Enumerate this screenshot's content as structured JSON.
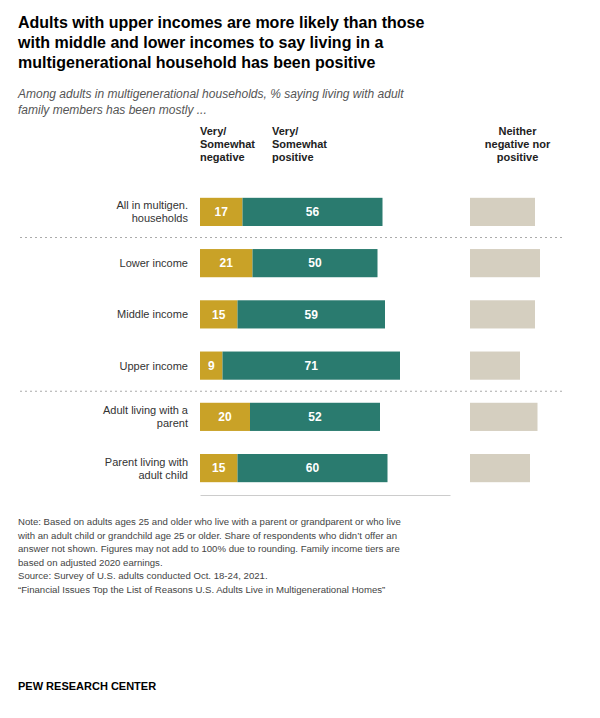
{
  "chart_data": {
    "type": "bar",
    "orientation": "horizontal",
    "stacked": true,
    "data_labels": true,
    "tick_labels": false,
    "grid": false,
    "title": "Adults with upper incomes are more likely than those\nwith middle and lower incomes to say living in a\nmultigenerational household has been positive",
    "subtitle": "Among adults in multigenerational households, % saying living with adult\nfamily members has been mostly ...",
    "categories": [
      "All in multigen.\nhouseholds",
      "Lower income",
      "Middle income",
      "Upper income",
      "Adult living with a\nparent",
      "Parent living with\nadult child"
    ],
    "series": [
      {
        "name": "Very/\nSomewhat\nnegative",
        "color": "#C9A227",
        "values": [
          17,
          21,
          15,
          9,
          20,
          15
        ]
      },
      {
        "name": "Very/\nSomewhat\npositive",
        "color": "#2A7B6F",
        "values": [
          56,
          50,
          59,
          71,
          52,
          60
        ]
      },
      {
        "name": "Neither\nnegative nor\npositive",
        "color": "#D5CFC0",
        "values": [
          26,
          28,
          26,
          20,
          27,
          24
        ]
      }
    ],
    "xlim": [
      0,
      100
    ],
    "annotations": [
      "Note: Based on adults ages 25 and older who live with a parent or grandparent or who live\nwith an adult child or grandchild age 25 or older. Share of respondents who didn’t offer an\nanswer not shown. Figures may not add to 100% due to rounding. Family income tiers are\nbased on adjusted 2020 earnings.\nSource: Survey of U.S. adults conducted Oct. 18-24, 2021.\n“Financial Issues Top the List of Reasons U.S. Adults Live in Multigenerational Homes”",
      "PEW RESEARCH CENTER"
    ]
  }
}
